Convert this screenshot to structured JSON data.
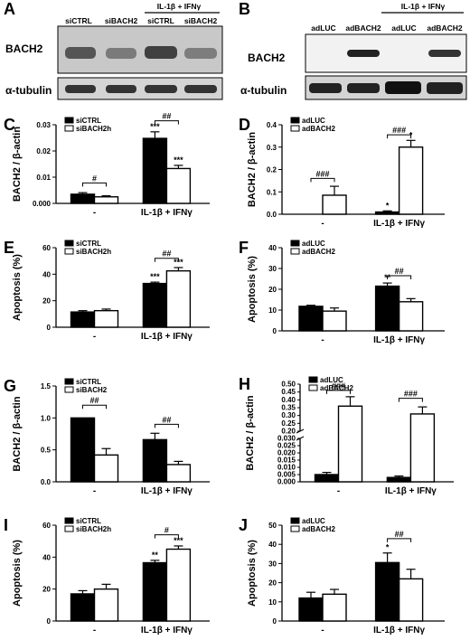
{
  "blots": {
    "A": {
      "panel_label": "A",
      "group_header": "IL-1β + IFNγ",
      "lanes": [
        "siCTRL",
        "siBACH2",
        "siCTRL",
        "siBACH2"
      ],
      "rows": [
        "BACH2",
        "α-tubulin"
      ]
    },
    "B": {
      "panel_label": "B",
      "group_header": "IL-1β + IFNγ",
      "lanes": [
        "adLUC",
        "adBACH2",
        "adLUC",
        "adBACH2"
      ],
      "rows": [
        "BACH2",
        "α-tubulin"
      ]
    }
  },
  "chart_data": [
    {
      "panel": "C",
      "type": "bar",
      "categories": [
        "-",
        "IL-1β + IFNγ"
      ],
      "ylabel": "BACH2 / β-actin",
      "ylim": [
        0,
        0.03
      ],
      "yticks": [
        "0.000",
        "0.01",
        "0.02",
        "0.03"
      ],
      "series": [
        {
          "name": "siCTRL",
          "fill": "#000000",
          "values": [
            0.0035,
            0.0248
          ],
          "errors": [
            0.0006,
            0.0025
          ]
        },
        {
          "name": "siBACH2h",
          "fill": "#ffffff",
          "values": [
            0.0025,
            0.0133
          ],
          "errors": [
            0.0004,
            0.0012
          ]
        }
      ],
      "bar_labels": [
        [
          "",
          "***"
        ],
        [
          "",
          "***"
        ]
      ],
      "comparisons": [
        {
          "category": 0,
          "label": "#",
          "y": 0.0078
        },
        {
          "category": 1,
          "label": "##",
          "y": 0.0315
        }
      ]
    },
    {
      "panel": "D",
      "type": "bar",
      "categories": [
        "-",
        "IL-1β + IFNγ"
      ],
      "ylabel": "BACH2 / β-actin",
      "ylim": [
        0,
        0.4
      ],
      "yticks": [
        "0.0",
        "0.1",
        "0.2",
        "0.3",
        "0.4"
      ],
      "series": [
        {
          "name": "adLUC",
          "fill": "#000000",
          "values": [
            0.0,
            0.01
          ],
          "errors": [
            0.0,
            0.005
          ]
        },
        {
          "name": "adBACH2",
          "fill": "#ffffff",
          "values": [
            0.085,
            0.3
          ],
          "errors": [
            0.04,
            0.03
          ]
        }
      ],
      "bar_labels": [
        [
          "",
          "*"
        ],
        [
          "",
          "*"
        ]
      ],
      "comparisons": [
        {
          "category": 0,
          "label": "###",
          "y": 0.16
        },
        {
          "category": 1,
          "label": "###",
          "y": 0.355
        }
      ]
    },
    {
      "panel": "E",
      "type": "bar",
      "categories": [
        "-",
        "IL-1β + IFNγ"
      ],
      "ylabel": "Apoptosis (%)",
      "ylim": [
        0,
        60
      ],
      "yticks": [
        "0",
        "20",
        "40",
        "60"
      ],
      "series": [
        {
          "name": "siCTRL",
          "fill": "#000000",
          "values": [
            11.5,
            33.0
          ],
          "errors": [
            1.0,
            1.0
          ]
        },
        {
          "name": "siBACH2h",
          "fill": "#ffffff",
          "values": [
            12.5,
            42.5
          ],
          "errors": [
            1.2,
            2.5
          ]
        }
      ],
      "bar_labels": [
        [
          "",
          "***"
        ],
        [
          "",
          "***"
        ]
      ],
      "comparisons": [
        {
          "category": 1,
          "label": "##",
          "y": 52
        }
      ]
    },
    {
      "panel": "F",
      "type": "bar",
      "categories": [
        "-",
        "IL-1β + IFNγ"
      ],
      "ylabel": "Apoptosis (%)",
      "ylim": [
        0,
        40
      ],
      "yticks": [
        "0",
        "10",
        "20",
        "30",
        "40"
      ],
      "series": [
        {
          "name": "adLUC",
          "fill": "#000000",
          "values": [
            11.8,
            21.5
          ],
          "errors": [
            0.5,
            1.5
          ]
        },
        {
          "name": "adBACH2",
          "fill": "#ffffff",
          "values": [
            9.5,
            14.0
          ],
          "errors": [
            1.5,
            1.5
          ]
        }
      ],
      "bar_labels": [
        [
          "",
          "**"
        ],
        [
          "",
          ""
        ]
      ],
      "comparisons": [
        {
          "category": 1,
          "label": "##",
          "y": 26.5
        }
      ]
    },
    {
      "panel": "G",
      "type": "bar",
      "categories": [
        "-",
        "IL-1β + IFNγ"
      ],
      "ylabel": "BACH2 / β-actin",
      "ylim": [
        0,
        1.5
      ],
      "yticks": [
        "0.0",
        "0.5",
        "1.0",
        "1.5"
      ],
      "series": [
        {
          "name": "siCTRL",
          "fill": "#000000",
          "values": [
            1.0,
            0.66
          ],
          "errors": [
            0.0,
            0.1
          ]
        },
        {
          "name": "siBACH2",
          "fill": "#ffffff",
          "values": [
            0.42,
            0.27
          ],
          "errors": [
            0.1,
            0.05
          ]
        }
      ],
      "bar_labels": [
        [
          "",
          ""
        ],
        [
          "",
          ""
        ]
      ],
      "comparisons": [
        {
          "category": 0,
          "label": "##",
          "y": 1.2
        },
        {
          "category": 1,
          "label": "##",
          "y": 0.9
        }
      ]
    },
    {
      "panel": "H",
      "type": "bar",
      "categories": [
        "-",
        "IL-1β + IFNγ"
      ],
      "ylabel": "BACH2 / β-actin",
      "axis_break": true,
      "ylim_lower": [
        0,
        0.03
      ],
      "ylim_upper": [
        0.2,
        0.5
      ],
      "yticks_lower": [
        "0.000",
        "0.005",
        "0.010",
        "0.015",
        "0.020",
        "0.025",
        "0.030"
      ],
      "yticks_upper": [
        "0.20",
        "0.25",
        "0.30",
        "0.35",
        "0.40",
        "0.45",
        "0.50"
      ],
      "series": [
        {
          "name": "adLUC",
          "fill": "#000000",
          "values": [
            0.005,
            0.003
          ],
          "errors": [
            0.0015,
            0.001
          ]
        },
        {
          "name": "adBACH2",
          "fill": "#ffffff",
          "values": [
            0.36,
            0.31
          ],
          "errors": [
            0.06,
            0.045
          ]
        }
      ],
      "bar_labels": [
        [
          "",
          ""
        ],
        [
          "",
          ""
        ]
      ],
      "comparisons": [
        {
          "category": 0,
          "label": "###",
          "y": 0.46
        },
        {
          "category": 1,
          "label": "###",
          "y": 0.41
        }
      ]
    },
    {
      "panel": "I",
      "type": "bar",
      "categories": [
        "-",
        "IL-1β + IFNγ"
      ],
      "ylabel": "Apoptosis (%)",
      "ylim": [
        0,
        60
      ],
      "yticks": [
        "0",
        "20",
        "40",
        "60"
      ],
      "series": [
        {
          "name": "siCTRL",
          "fill": "#000000",
          "values": [
            17.0,
            36.5
          ],
          "errors": [
            2.0,
            1.5
          ]
        },
        {
          "name": "siBACH2h",
          "fill": "#ffffff",
          "values": [
            20.0,
            45.0
          ],
          "errors": [
            3.0,
            2.0
          ]
        }
      ],
      "bar_labels": [
        [
          "",
          "**"
        ],
        [
          "",
          "***"
        ]
      ],
      "comparisons": [
        {
          "category": 1,
          "label": "#",
          "y": 54
        }
      ]
    },
    {
      "panel": "J",
      "type": "bar",
      "categories": [
        "-",
        "IL-1β + IFNγ"
      ],
      "ylabel": "Apoptosis (%)",
      "ylim": [
        0,
        50
      ],
      "yticks": [
        "0",
        "10",
        "20",
        "30",
        "40",
        "50"
      ],
      "series": [
        {
          "name": "adLUC",
          "fill": "#000000",
          "values": [
            12.0,
            30.5
          ],
          "errors": [
            3.0,
            5.0
          ]
        },
        {
          "name": "adBACH2",
          "fill": "#ffffff",
          "values": [
            14.0,
            22.0
          ],
          "errors": [
            2.5,
            5.0
          ]
        }
      ],
      "bar_labels": [
        [
          "",
          "*"
        ],
        [
          "",
          ""
        ]
      ],
      "comparisons": [
        {
          "category": 1,
          "label": "##",
          "y": 43
        }
      ]
    }
  ]
}
